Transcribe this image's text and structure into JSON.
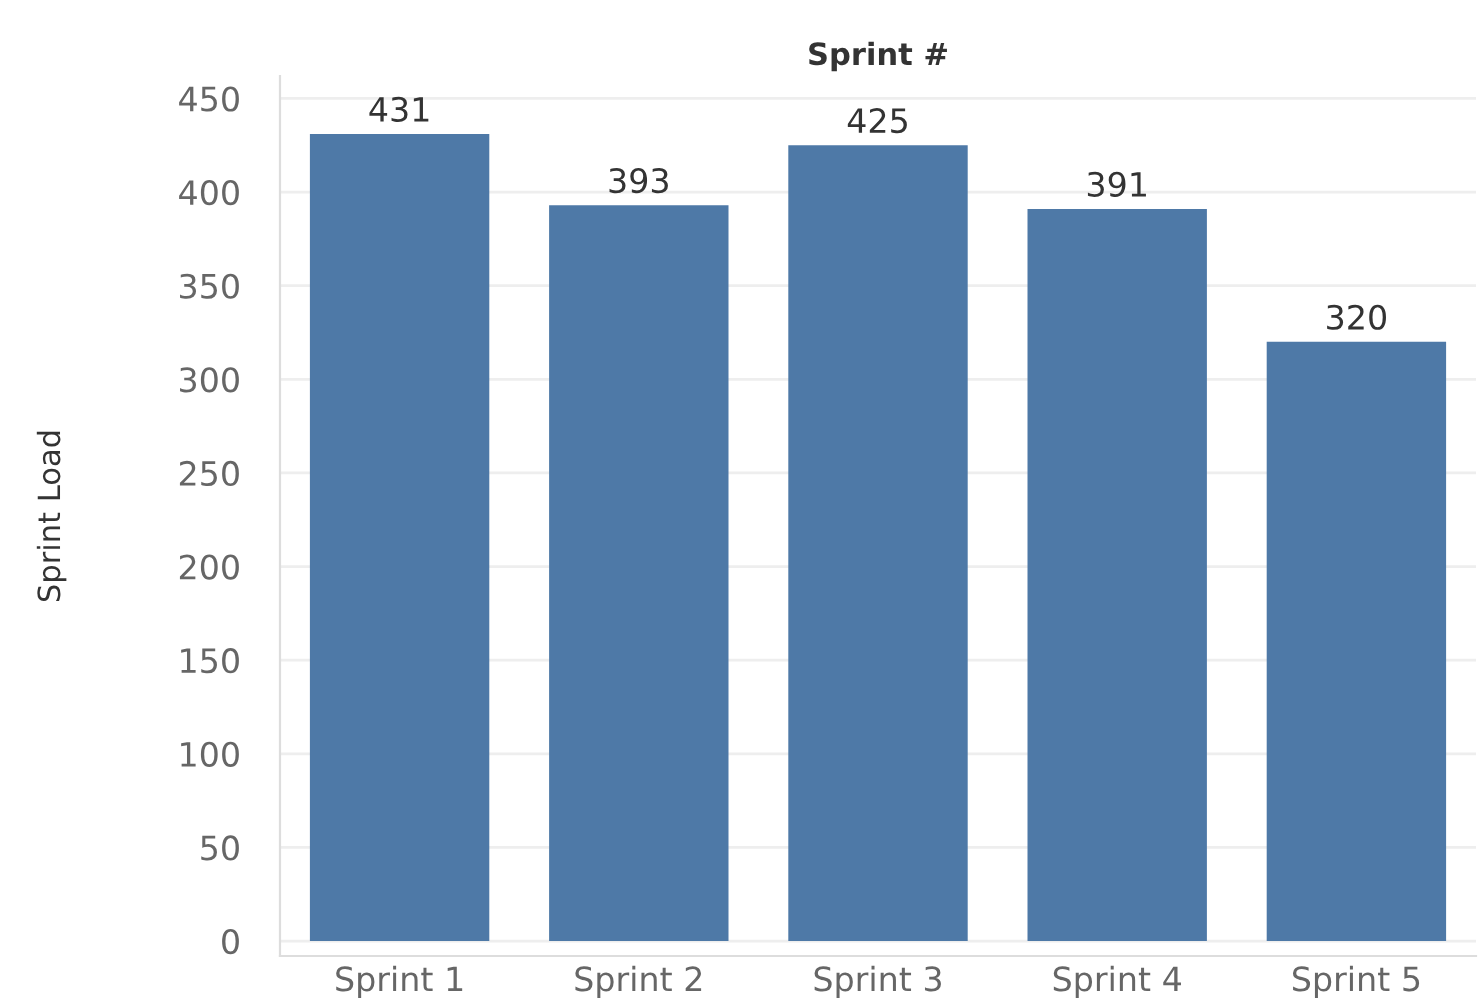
{
  "chart_data": {
    "type": "bar",
    "xlabel": "Sprint #",
    "ylabel": "Sprint Load",
    "categories": [
      "Sprint 1",
      "Sprint 2",
      "Sprint 3",
      "Sprint 4",
      "Sprint 5"
    ],
    "values": [
      431,
      393,
      425,
      391,
      320
    ],
    "color": "#4e79a7",
    "ylim": [
      -8,
      462
    ],
    "yticks": [
      0,
      50,
      100,
      150,
      200,
      250,
      300,
      350,
      400,
      450
    ],
    "grid": "y",
    "data_labels": true
  }
}
